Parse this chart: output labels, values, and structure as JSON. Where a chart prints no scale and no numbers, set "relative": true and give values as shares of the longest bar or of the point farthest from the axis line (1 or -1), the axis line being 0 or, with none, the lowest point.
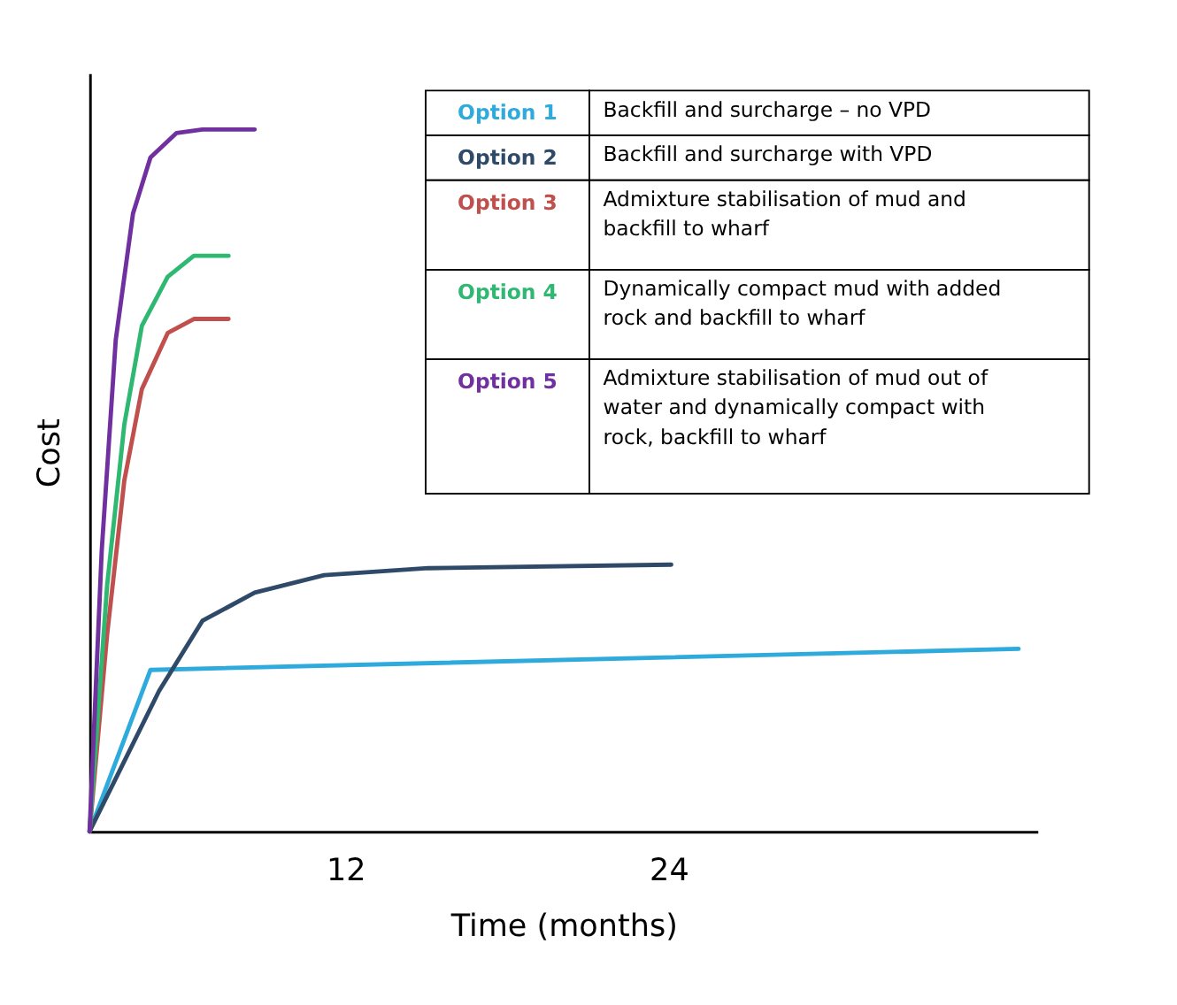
{
  "chart_data": {
    "type": "line",
    "relative": true,
    "xlabel": "Time (months)",
    "ylabel": "Cost",
    "xlim": [
      2.5,
      37.7
    ],
    "xticks": [
      12,
      24
    ],
    "grid": false,
    "legend": "top",
    "marker": "none",
    "line_style": "solid",
    "tick_labels": "x",
    "series": [
      {
        "name": "Option 1",
        "color": "#2eaadc",
        "x": [
          2.5,
          4.76,
          37.0
        ],
        "values": [
          0,
          0.23,
          0.26
        ]
      },
      {
        "name": "Option 2",
        "color": "#2f4a68",
        "x": [
          2.5,
          3.79,
          5.08,
          6.69,
          8.63,
          11.21,
          15.08,
          24.1
        ],
        "values": [
          0,
          0.1,
          0.2,
          0.3,
          0.34,
          0.365,
          0.375,
          0.38
        ]
      },
      {
        "name": "Option 3",
        "color": "#c0504d",
        "x": [
          2.5,
          3.15,
          3.79,
          4.44,
          5.4,
          6.37,
          7.66
        ],
        "values": [
          0,
          0.28,
          0.5,
          0.63,
          0.71,
          0.73,
          0.73
        ]
      },
      {
        "name": "Option 4",
        "color": "#2eb872",
        "x": [
          2.5,
          3.15,
          3.79,
          4.44,
          5.4,
          6.37,
          7.66
        ],
        "values": [
          0,
          0.35,
          0.58,
          0.72,
          0.79,
          0.82,
          0.82
        ]
      },
      {
        "name": "Option 5",
        "color": "#7030a0",
        "x": [
          2.5,
          2.95,
          3.47,
          4.11,
          4.76,
          5.73,
          6.69,
          8.63
        ],
        "values": [
          0,
          0.4,
          0.7,
          0.88,
          0.96,
          0.995,
          1,
          1
        ]
      }
    ],
    "annotations": [
      "Backfill and surcharge – no VPD",
      "Backfill and surcharge with VPD",
      "Admixture stabilisation of mud and backfill to wharf",
      "Dynamically compact mud with added rock and backfill to wharf",
      "Admixture stabilisation of mud out of water and dynamically compact with rock, backfill to wharf"
    ]
  }
}
